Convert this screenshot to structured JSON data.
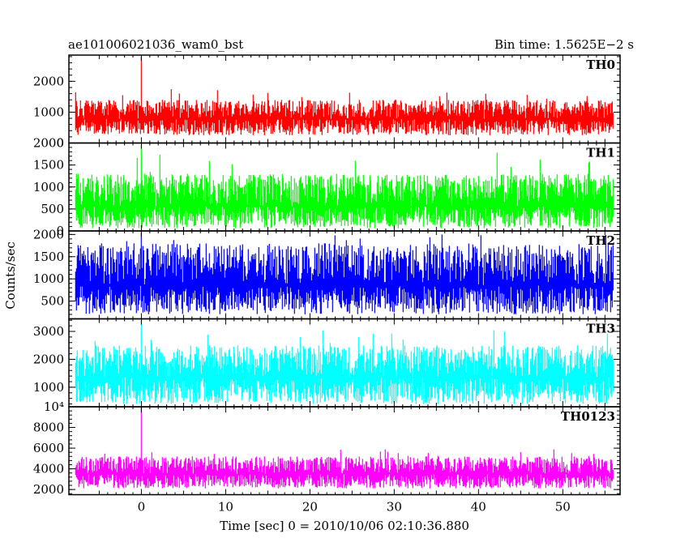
{
  "header": {
    "title": "ae101006021036_wam0_bst",
    "bin_time": "Bin time: 1.5625E−2 s"
  },
  "axes": {
    "ylabel": "Counts/sec",
    "xlabel": "Time [sec] 0 = 2010/10/06 02:10:36.880"
  },
  "chart_data": [
    {
      "type": "line",
      "name": "TH0",
      "color": "#ff0000",
      "xlim": [
        -8.6,
        56.8
      ],
      "ylim": [
        0,
        2850
      ],
      "yticks": [
        {
          "v": 1000,
          "label": "1000"
        },
        {
          "v": 2000,
          "label": "2000"
        },
        {
          "v": 0,
          "label": "0"
        }
      ],
      "signal": {
        "x_start": -7.8,
        "x_end": 56.0,
        "mean": 780,
        "low": 250,
        "high": 1400,
        "max_peak": 1850,
        "burst_x": 0.0,
        "burst_peak": 2800
      }
    },
    {
      "type": "line",
      "name": "TH1",
      "color": "#00ff00",
      "xlim": [
        -8.6,
        56.8
      ],
      "ylim": [
        0,
        2000
      ],
      "yticks": [
        {
          "v": 0,
          "label": "0"
        },
        {
          "v": 500,
          "label": "500"
        },
        {
          "v": 1000,
          "label": "1000"
        },
        {
          "v": 1500,
          "label": "1500"
        },
        {
          "v": 2000,
          "label": "2000"
        }
      ],
      "signal": {
        "x_start": -7.8,
        "x_end": 56.0,
        "mean": 560,
        "low": 60,
        "high": 1300,
        "max_peak": 1800,
        "burst_x": 0.0,
        "burst_peak": 1950
      }
    },
    {
      "type": "line",
      "name": "TH2",
      "color": "#0000ff",
      "xlim": [
        -8.6,
        56.8
      ],
      "ylim": [
        100,
        2080
      ],
      "yticks": [
        {
          "v": 500,
          "label": "500"
        },
        {
          "v": 1000,
          "label": "1000"
        },
        {
          "v": 1500,
          "label": "1500"
        },
        {
          "v": 2000,
          "label": "2000"
        }
      ],
      "signal": {
        "x_start": -7.8,
        "x_end": 56.0,
        "mean": 850,
        "low": 200,
        "high": 1800,
        "max_peak": 2000,
        "burst_x": 0.0,
        "burst_peak": 2050
      }
    },
    {
      "type": "line",
      "name": "TH3",
      "color": "#00ffff",
      "xlim": [
        -8.6,
        56.8
      ],
      "ylim": [
        300,
        3450
      ],
      "yticks": [
        {
          "v": 1000,
          "label": "1000"
        },
        {
          "v": 2000,
          "label": "2000"
        },
        {
          "v": 3000,
          "label": "3000"
        }
      ],
      "signal": {
        "x_start": -7.8,
        "x_end": 56.0,
        "mean": 1350,
        "low": 400,
        "high": 2500,
        "max_peak": 3100,
        "burst_x": 0.0,
        "burst_peak": 3400
      }
    },
    {
      "type": "line",
      "name": "TH0123",
      "color": "#ff00ff",
      "xlim": [
        -8.6,
        56.8
      ],
      "ylim": [
        1500,
        10000
      ],
      "yticks": [
        {
          "v": 2000,
          "label": "2000"
        },
        {
          "v": 4000,
          "label": "4000"
        },
        {
          "v": 6000,
          "label": "6000"
        },
        {
          "v": 8000,
          "label": "8000"
        },
        {
          "v": 10000,
          "label": "10⁴"
        }
      ],
      "signal": {
        "x_start": -7.8,
        "x_end": 56.0,
        "mean": 3500,
        "low": 2100,
        "high": 5200,
        "max_peak": 5900,
        "burst_x": 0.0,
        "burst_peak": 10000
      }
    }
  ],
  "x_ticks": [
    {
      "v": 0,
      "label": "0"
    },
    {
      "v": 10,
      "label": "10"
    },
    {
      "v": 20,
      "label": "20"
    },
    {
      "v": 30,
      "label": "30"
    },
    {
      "v": 40,
      "label": "40"
    },
    {
      "v": 50,
      "label": "50"
    }
  ]
}
